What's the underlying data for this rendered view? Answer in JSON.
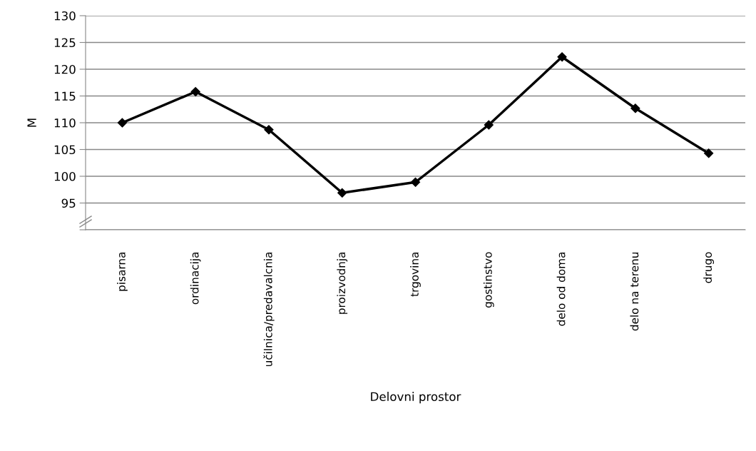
{
  "chart_data": {
    "type": "line",
    "xlabel": "Delovni prostor",
    "ylabel": "M",
    "categories": [
      "pisarna",
      "ordinacija",
      "učilnica/predavalcnia",
      "proizvodnja",
      "trgovina",
      "gostinstvo",
      "delo od doma",
      "delo na terenu",
      "drugo"
    ],
    "series": [
      {
        "color": "#000000",
        "values": [
          110.0,
          115.8,
          108.7,
          96.9,
          98.9,
          109.6,
          122.3,
          112.7,
          104.3
        ]
      }
    ],
    "ylim": [
      90,
      130
    ],
    "yticks": [
      {
        "value": 90,
        "label": null
      },
      95,
      100,
      105,
      110,
      115,
      120,
      125,
      130
    ],
    "grid": "y",
    "marker": "diamond",
    "line_style": "solid"
  }
}
